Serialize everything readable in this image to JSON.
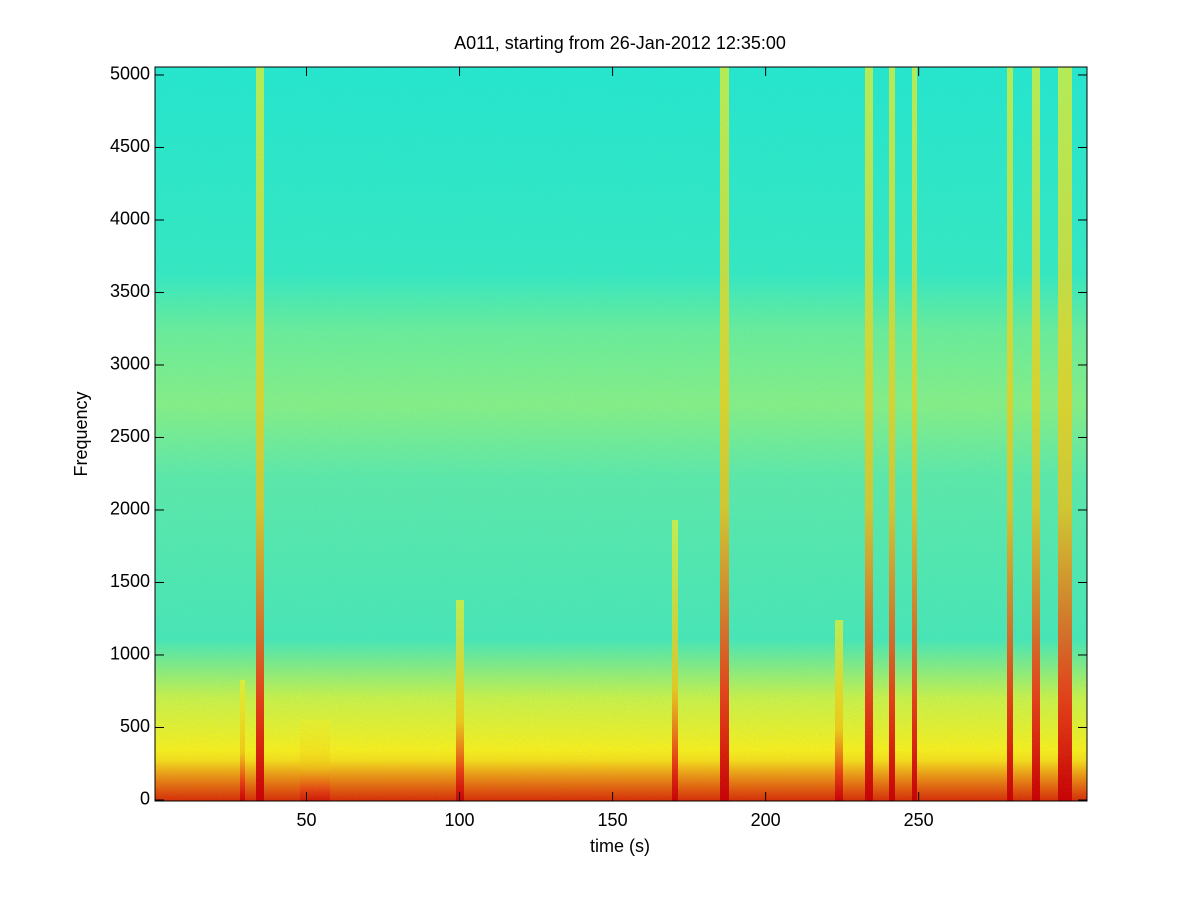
{
  "chart_data": {
    "type": "spectrogram",
    "title": "A011, starting from 26-Jan-2012 12:35:00",
    "x_label": "time (s)",
    "y_label": "Frequency",
    "xlim": [
      0.5,
      305
    ],
    "xticks": [
      50,
      100,
      150,
      200,
      250
    ],
    "ylim": [
      -7,
      5055
    ],
    "yticks": [
      0,
      500,
      1000,
      1500,
      2000,
      2500,
      3000,
      3500,
      4000,
      4500,
      5000
    ]
  }
}
